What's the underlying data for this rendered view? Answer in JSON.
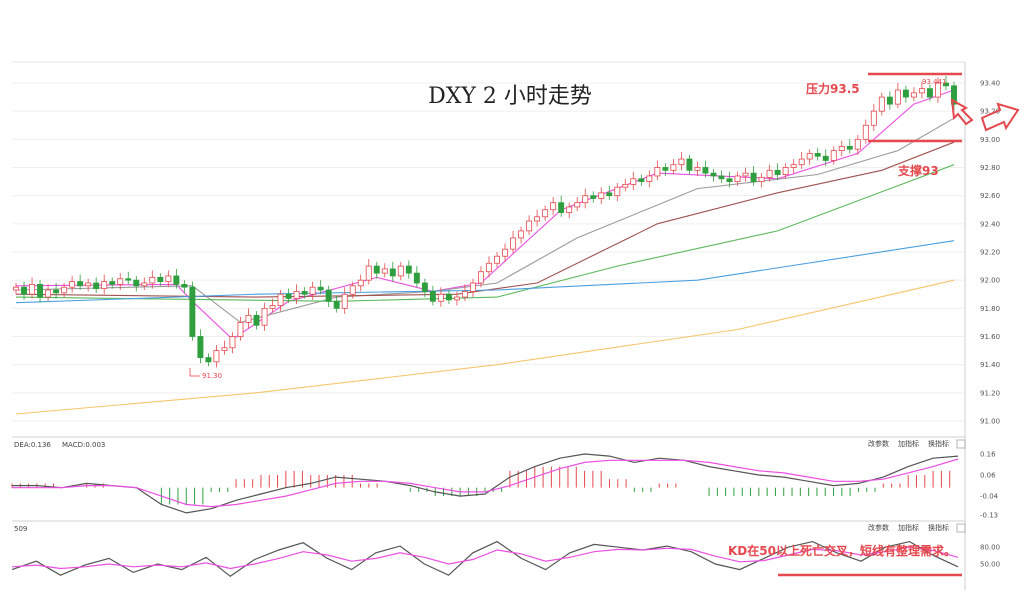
{
  "chart_data": [
    {
      "type": "candlestick",
      "title": "DXY 2 小时走势",
      "ylim": [
        91.0,
        93.5
      ],
      "yticks": [
        "93.40",
        "93.20",
        "93.00",
        "92.80",
        "92.60",
        "92.40",
        "92.20",
        "92.00",
        "91.80",
        "91.60",
        "91.40",
        "91.20",
        "91.00"
      ],
      "annotations": {
        "resistance_label": "压力93.5",
        "resistance_value": 93.5,
        "support_label": "支撑93",
        "support_value": 93.0,
        "high_label": "93.441",
        "low_label": "91.30"
      },
      "closes": [
        91.95,
        91.9,
        91.97,
        91.88,
        91.93,
        91.91,
        91.95,
        91.99,
        91.96,
        91.98,
        91.94,
        91.99,
        91.97,
        92.01,
        92.0,
        91.96,
        91.98,
        92.02,
        91.99,
        92.03,
        91.97,
        91.95,
        91.6,
        91.45,
        91.42,
        91.5,
        91.52,
        91.6,
        91.7,
        91.75,
        91.68,
        91.8,
        91.82,
        91.9,
        91.87,
        91.92,
        91.9,
        91.95,
        91.93,
        91.85,
        91.8,
        91.9,
        91.96,
        92.0,
        92.1,
        92.05,
        92.08,
        92.03,
        92.1,
        92.05,
        91.98,
        91.92,
        91.85,
        91.9,
        91.86,
        91.88,
        91.92,
        91.98,
        92.06,
        92.12,
        92.17,
        92.22,
        92.3,
        92.35,
        92.42,
        92.45,
        92.5,
        92.55,
        92.48,
        92.52,
        92.55,
        92.6,
        92.58,
        92.62,
        92.6,
        92.66,
        92.68,
        92.72,
        92.7,
        92.74,
        92.8,
        92.78,
        92.82,
        92.86,
        92.78,
        92.8,
        92.76,
        92.74,
        92.72,
        92.7,
        92.74,
        92.76,
        92.7,
        92.73,
        92.78,
        92.75,
        92.8,
        92.82,
        92.86,
        92.9,
        92.88,
        92.85,
        92.92,
        92.95,
        92.93,
        93.0,
        93.1,
        93.2,
        93.3,
        93.25,
        93.35,
        93.3,
        93.33,
        93.36,
        93.3,
        93.4,
        93.38,
        93.25
      ],
      "moving_averages": [
        {
          "color": "#ec4fe3",
          "points": [
            [
              0,
              91.96
            ],
            [
              20,
              91.97
            ],
            [
              22,
              91.85
            ],
            [
              27,
              91.58
            ],
            [
              34,
              91.85
            ],
            [
              45,
              92.02
            ],
            [
              52,
              91.92
            ],
            [
              58,
              91.98
            ],
            [
              68,
              92.5
            ],
            [
              80,
              92.76
            ],
            [
              95,
              92.72
            ],
            [
              105,
              92.9
            ],
            [
              112,
              93.25
            ],
            [
              117,
              93.35
            ]
          ]
        },
        {
          "color": "#9b9b9b",
          "points": [
            [
              0,
              91.93
            ],
            [
              22,
              91.96
            ],
            [
              28,
              91.7
            ],
            [
              40,
              91.88
            ],
            [
              52,
              91.92
            ],
            [
              60,
              91.98
            ],
            [
              70,
              92.3
            ],
            [
              85,
              92.65
            ],
            [
              100,
              92.75
            ],
            [
              110,
              92.92
            ],
            [
              117,
              93.15
            ]
          ]
        },
        {
          "color": "#a0524f",
          "points": [
            [
              0,
              91.9
            ],
            [
              30,
              91.88
            ],
            [
              55,
              91.9
            ],
            [
              65,
              91.98
            ],
            [
              80,
              92.4
            ],
            [
              95,
              92.62
            ],
            [
              108,
              92.78
            ],
            [
              117,
              92.98
            ]
          ]
        },
        {
          "color": "#5cb85c",
          "points": [
            [
              0,
              91.88
            ],
            [
              40,
              91.85
            ],
            [
              60,
              91.88
            ],
            [
              75,
              92.1
            ],
            [
              95,
              92.35
            ],
            [
              117,
              92.82
            ]
          ]
        },
        {
          "color": "#4a9fe0",
          "points": [
            [
              0,
              91.84
            ],
            [
              30,
              91.9
            ],
            [
              60,
              91.93
            ],
            [
              85,
              92.0
            ],
            [
              117,
              92.28
            ]
          ]
        },
        {
          "color": "#f7c56a",
          "points": [
            [
              0,
              91.05
            ],
            [
              30,
              91.2
            ],
            [
              60,
              91.4
            ],
            [
              90,
              91.65
            ],
            [
              117,
              92.0
            ]
          ]
        }
      ]
    },
    {
      "type": "line",
      "title": "MACD",
      "legend": [
        "DEA:0.136",
        "MACD:0.003"
      ],
      "menu": [
        "改参数",
        "加指标",
        "换指标"
      ],
      "ylim": [
        -0.13,
        0.16
      ],
      "yticks": [
        "0.16",
        "0.06",
        "-0.04",
        "-0.13"
      ],
      "dif": [
        0.01,
        0.01,
        0.0,
        0.02,
        0.01,
        0.0,
        -0.08,
        -0.12,
        -0.1,
        -0.06,
        -0.03,
        0.0,
        0.02,
        0.05,
        0.04,
        0.03,
        0.01,
        -0.02,
        -0.04,
        -0.03,
        0.05,
        0.1,
        0.14,
        0.16,
        0.15,
        0.12,
        0.14,
        0.13,
        0.1,
        0.08,
        0.06,
        0.05,
        0.03,
        0.01,
        0.02,
        0.05,
        0.1,
        0.14,
        0.15
      ],
      "dea": [
        0.0,
        0.0,
        0.0,
        0.01,
        0.01,
        0.0,
        -0.04,
        -0.08,
        -0.09,
        -0.08,
        -0.06,
        -0.04,
        -0.01,
        0.02,
        0.03,
        0.03,
        0.02,
        0.0,
        -0.02,
        -0.02,
        0.01,
        0.05,
        0.09,
        0.12,
        0.13,
        0.13,
        0.13,
        0.13,
        0.12,
        0.1,
        0.08,
        0.07,
        0.05,
        0.03,
        0.03,
        0.04,
        0.07,
        0.1,
        0.136
      ]
    },
    {
      "type": "line",
      "title": "KD",
      "legend": [
        "509"
      ],
      "menu": [
        "改参数",
        "加指标",
        "换指标"
      ],
      "ylim": [
        0,
        100
      ],
      "yticks": [
        "80.00",
        "50.00"
      ],
      "annotation": "KD在50以上死亡交叉，短线有整理需求。",
      "k": [
        40,
        55,
        30,
        48,
        60,
        35,
        50,
        40,
        62,
        28,
        58,
        75,
        88,
        60,
        40,
        70,
        82,
        50,
        30,
        70,
        90,
        60,
        40,
        70,
        85,
        80,
        75,
        82,
        72,
        50,
        40,
        60,
        80,
        90,
        70,
        55,
        80,
        90,
        65,
        45
      ],
      "d": [
        45,
        48,
        42,
        45,
        50,
        45,
        48,
        45,
        52,
        42,
        50,
        60,
        72,
        66,
        55,
        60,
        70,
        62,
        50,
        58,
        75,
        68,
        55,
        62,
        72,
        76,
        75,
        78,
        76,
        64,
        54,
        56,
        66,
        76,
        74,
        66,
        72,
        80,
        74,
        62
      ]
    }
  ]
}
